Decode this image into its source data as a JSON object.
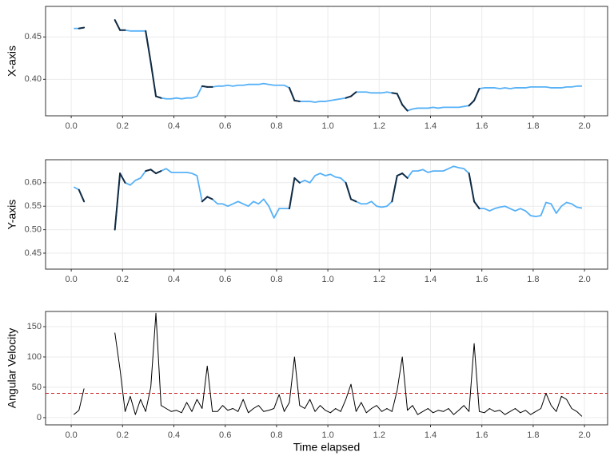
{
  "chart_data": [
    {
      "type": "line",
      "ylabel": "X-axis",
      "grid": true,
      "xlim": [
        -0.1,
        2.09
      ],
      "xticks": [
        {
          "value": 0,
          "label": "0.0"
        },
        0.2,
        0.4,
        0.6,
        0.8,
        {
          "value": 1,
          "label": "1.0"
        },
        1.2,
        1.4,
        1.6,
        1.8,
        {
          "value": 2,
          "label": "2.0"
        }
      ],
      "ylim": [
        0.357,
        0.486
      ],
      "yticks": [
        {
          "value": 0.4,
          "label": "0.40"
        },
        0.45
      ],
      "highlight_color": "#132B43",
      "series": [
        {
          "color": "#56B1F7",
          "values": [
            0.46,
            0.46,
            0.461,
            null,
            0.47,
            0.458,
            0.458,
            0.457,
            0.457,
            0.457,
            0.457,
            0.42,
            0.38,
            0.378,
            0.377,
            0.377,
            0.378,
            0.377,
            0.378,
            0.378,
            0.38,
            0.392,
            0.391,
            0.391,
            0.392,
            0.392,
            0.393,
            0.392,
            0.393,
            0.393,
            0.394,
            0.394,
            0.394,
            0.395,
            0.394,
            0.393,
            0.393,
            0.393,
            0.39,
            0.375,
            0.374,
            0.374,
            0.374,
            0.373,
            0.374,
            0.374,
            0.375,
            0.376,
            0.377,
            0.378,
            0.38,
            0.385,
            0.385,
            0.385,
            0.384,
            0.384,
            0.384,
            0.385,
            0.384,
            0.383,
            0.37,
            0.363,
            0.365,
            0.366,
            0.366,
            0.366,
            0.367,
            0.366,
            0.367,
            0.367,
            0.367,
            0.367,
            0.368,
            0.369,
            0.375,
            0.389,
            0.39,
            0.39,
            0.39,
            0.389,
            0.39,
            0.389,
            0.39,
            0.39,
            0.39,
            0.391,
            0.391,
            0.391,
            0.391,
            0.39,
            0.39,
            0.39,
            0.391,
            0.391,
            0.392,
            0.392
          ]
        }
      ]
    },
    {
      "type": "line",
      "ylabel": "Y-axis",
      "grid": true,
      "xlim": [
        -0.1,
        2.09
      ],
      "xticks": [
        {
          "value": 0,
          "label": "0.0"
        },
        0.2,
        0.4,
        0.6,
        0.8,
        {
          "value": 1,
          "label": "1.0"
        },
        1.2,
        1.4,
        1.6,
        1.8,
        {
          "value": 2,
          "label": "2.0"
        }
      ],
      "ylim": [
        0.416,
        0.649
      ],
      "yticks": [
        0.45,
        {
          "value": 0.5,
          "label": "0.50"
        },
        0.55,
        {
          "value": 0.6,
          "label": "0.60"
        }
      ],
      "highlight_color": "#132B43",
      "series": [
        {
          "color": "#56B1F7",
          "values": [
            0.591,
            0.585,
            0.56,
            null,
            0.5,
            0.62,
            0.6,
            0.595,
            0.605,
            0.61,
            0.625,
            0.628,
            0.62,
            0.625,
            0.63,
            0.622,
            0.622,
            0.622,
            0.622,
            0.62,
            0.615,
            0.56,
            0.57,
            0.565,
            0.555,
            0.555,
            0.55,
            0.555,
            0.56,
            0.555,
            0.55,
            0.56,
            0.555,
            0.565,
            0.55,
            0.525,
            0.545,
            0.545,
            0.545,
            0.61,
            0.6,
            0.605,
            0.6,
            0.615,
            0.62,
            0.615,
            0.618,
            0.612,
            0.61,
            0.6,
            0.565,
            0.56,
            0.555,
            0.555,
            0.56,
            0.55,
            0.548,
            0.55,
            0.56,
            0.615,
            0.62,
            0.61,
            0.625,
            0.625,
            0.628,
            0.622,
            0.625,
            0.625,
            0.625,
            0.63,
            0.635,
            0.632,
            0.63,
            0.62,
            0.56,
            0.545,
            0.545,
            0.54,
            0.545,
            0.548,
            0.55,
            0.545,
            0.54,
            0.545,
            0.54,
            0.53,
            0.528,
            0.53,
            0.558,
            0.555,
            0.535,
            0.55,
            0.558,
            0.555,
            0.548,
            0.546
          ]
        }
      ]
    },
    {
      "type": "line",
      "ylabel": "Angular Velocity",
      "xlabel": "Time elapsed",
      "grid": true,
      "xlim": [
        -0.1,
        2.09
      ],
      "xticks": [
        {
          "value": 0,
          "label": "0.0"
        },
        0.2,
        0.4,
        0.6,
        0.8,
        {
          "value": 1,
          "label": "1.0"
        },
        1.2,
        1.4,
        1.6,
        1.8,
        {
          "value": 2,
          "label": "2.0"
        }
      ],
      "ylim": [
        -12,
        175
      ],
      "yticks": [
        0,
        50,
        100,
        150
      ],
      "hline": {
        "value": 40,
        "color": "#CC2222",
        "dashed": true
      },
      "series": [
        {
          "color": "#000000",
          "values": [
            5,
            12,
            48,
            null,
            140,
            80,
            10,
            35,
            5,
            30,
            10,
            50,
            172,
            20,
            15,
            10,
            12,
            8,
            25,
            10,
            30,
            15,
            85,
            10,
            10,
            20,
            12,
            15,
            10,
            30,
            8,
            15,
            20,
            10,
            12,
            15,
            38,
            10,
            25,
            100,
            20,
            15,
            30,
            10,
            20,
            12,
            8,
            15,
            10,
            30,
            55,
            10,
            25,
            8,
            15,
            20,
            10,
            15,
            10,
            45,
            100,
            12,
            20,
            5,
            10,
            15,
            8,
            12,
            10,
            15,
            5,
            12,
            20,
            10,
            122,
            10,
            8,
            15,
            10,
            12,
            5,
            10,
            15,
            8,
            12,
            5,
            10,
            15,
            40,
            20,
            10,
            35,
            30,
            15,
            10,
            2
          ]
        }
      ]
    }
  ],
  "x": [
    0.01,
    0.03,
    0.05,
    0.11,
    0.17,
    0.19,
    0.21,
    0.23,
    0.25,
    0.27,
    0.29,
    0.31,
    0.33,
    0.35,
    0.37,
    0.39,
    0.41,
    0.43,
    0.45,
    0.47,
    0.49,
    0.51,
    0.53,
    0.55,
    0.57,
    0.59,
    0.61,
    0.63,
    0.65,
    0.67,
    0.69,
    0.71,
    0.73,
    0.75,
    0.77,
    0.79,
    0.81,
    0.83,
    0.85,
    0.87,
    0.89,
    0.91,
    0.93,
    0.95,
    0.97,
    0.99,
    1.01,
    1.03,
    1.05,
    1.07,
    1.09,
    1.11,
    1.13,
    1.15,
    1.17,
    1.19,
    1.21,
    1.23,
    1.25,
    1.27,
    1.29,
    1.31,
    1.33,
    1.35,
    1.37,
    1.39,
    1.41,
    1.43,
    1.45,
    1.47,
    1.49,
    1.51,
    1.53,
    1.55,
    1.57,
    1.59,
    1.61,
    1.63,
    1.65,
    1.67,
    1.69,
    1.71,
    1.73,
    1.75,
    1.77,
    1.79,
    1.81,
    1.83,
    1.85,
    1.87,
    1.89,
    1.91,
    1.93,
    1.95,
    1.97,
    1.99
  ]
}
